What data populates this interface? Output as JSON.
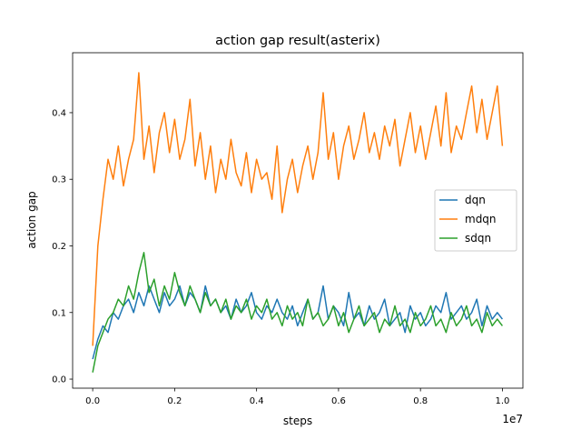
{
  "chart_data": {
    "type": "line",
    "title": "action gap result(asterix)",
    "xlabel": "steps",
    "ylabel": "action gap",
    "x_offset_label": "1e7",
    "xlim": [
      -0.049,
      1.05
    ],
    "ylim": [
      -0.0136,
      0.49
    ],
    "x_ticks": [
      0.0,
      0.2,
      0.4,
      0.6,
      0.8,
      1.0
    ],
    "x_tick_labels": [
      "0.0",
      "0.2",
      "0.4",
      "0.6",
      "0.8",
      "1.0"
    ],
    "y_ticks": [
      0.0,
      0.1,
      0.2,
      0.3,
      0.4
    ],
    "y_tick_labels": [
      "0.0",
      "0.1",
      "0.2",
      "0.3",
      "0.4"
    ],
    "grid": false,
    "legend_position": "center-right",
    "x_step": 0.0125,
    "series": [
      {
        "name": "dqn",
        "color": "#1f77b4",
        "values": [
          0.03,
          0.06,
          0.08,
          0.07,
          0.1,
          0.09,
          0.11,
          0.12,
          0.1,
          0.13,
          0.11,
          0.14,
          0.12,
          0.1,
          0.13,
          0.11,
          0.12,
          0.14,
          0.11,
          0.13,
          0.12,
          0.1,
          0.14,
          0.11,
          0.12,
          0.1,
          0.11,
          0.09,
          0.12,
          0.1,
          0.11,
          0.13,
          0.1,
          0.09,
          0.11,
          0.1,
          0.12,
          0.1,
          0.09,
          0.11,
          0.08,
          0.1,
          0.12,
          0.09,
          0.1,
          0.14,
          0.09,
          0.11,
          0.1,
          0.08,
          0.13,
          0.09,
          0.1,
          0.08,
          0.11,
          0.09,
          0.1,
          0.12,
          0.08,
          0.09,
          0.1,
          0.07,
          0.11,
          0.09,
          0.1,
          0.08,
          0.09,
          0.11,
          0.1,
          0.13,
          0.09,
          0.1,
          0.11,
          0.09,
          0.1,
          0.12,
          0.08,
          0.11,
          0.09,
          0.1,
          0.09
        ]
      },
      {
        "name": "mdqn",
        "color": "#ff7f0e",
        "values": [
          0.05,
          0.2,
          0.27,
          0.33,
          0.3,
          0.35,
          0.29,
          0.33,
          0.36,
          0.46,
          0.33,
          0.38,
          0.31,
          0.37,
          0.4,
          0.34,
          0.39,
          0.33,
          0.36,
          0.42,
          0.32,
          0.37,
          0.3,
          0.35,
          0.28,
          0.33,
          0.3,
          0.36,
          0.31,
          0.29,
          0.34,
          0.28,
          0.33,
          0.3,
          0.31,
          0.27,
          0.35,
          0.25,
          0.3,
          0.33,
          0.28,
          0.32,
          0.35,
          0.3,
          0.34,
          0.43,
          0.33,
          0.37,
          0.3,
          0.35,
          0.38,
          0.33,
          0.36,
          0.4,
          0.34,
          0.37,
          0.33,
          0.38,
          0.35,
          0.39,
          0.32,
          0.36,
          0.4,
          0.34,
          0.38,
          0.33,
          0.37,
          0.41,
          0.35,
          0.43,
          0.34,
          0.38,
          0.36,
          0.4,
          0.44,
          0.37,
          0.42,
          0.36,
          0.4,
          0.44,
          0.35
        ]
      },
      {
        "name": "sdqn",
        "color": "#2ca02c",
        "values": [
          0.01,
          0.05,
          0.07,
          0.09,
          0.1,
          0.12,
          0.11,
          0.14,
          0.12,
          0.16,
          0.19,
          0.13,
          0.15,
          0.11,
          0.14,
          0.12,
          0.16,
          0.13,
          0.11,
          0.14,
          0.12,
          0.1,
          0.13,
          0.11,
          0.12,
          0.1,
          0.12,
          0.09,
          0.11,
          0.1,
          0.12,
          0.09,
          0.11,
          0.1,
          0.12,
          0.09,
          0.1,
          0.08,
          0.11,
          0.09,
          0.1,
          0.08,
          0.12,
          0.09,
          0.1,
          0.08,
          0.09,
          0.11,
          0.08,
          0.1,
          0.07,
          0.09,
          0.11,
          0.08,
          0.09,
          0.1,
          0.07,
          0.09,
          0.08,
          0.11,
          0.08,
          0.09,
          0.07,
          0.1,
          0.08,
          0.09,
          0.11,
          0.08,
          0.09,
          0.07,
          0.1,
          0.08,
          0.09,
          0.11,
          0.08,
          0.09,
          0.07,
          0.1,
          0.08,
          0.09,
          0.08
        ]
      }
    ]
  }
}
